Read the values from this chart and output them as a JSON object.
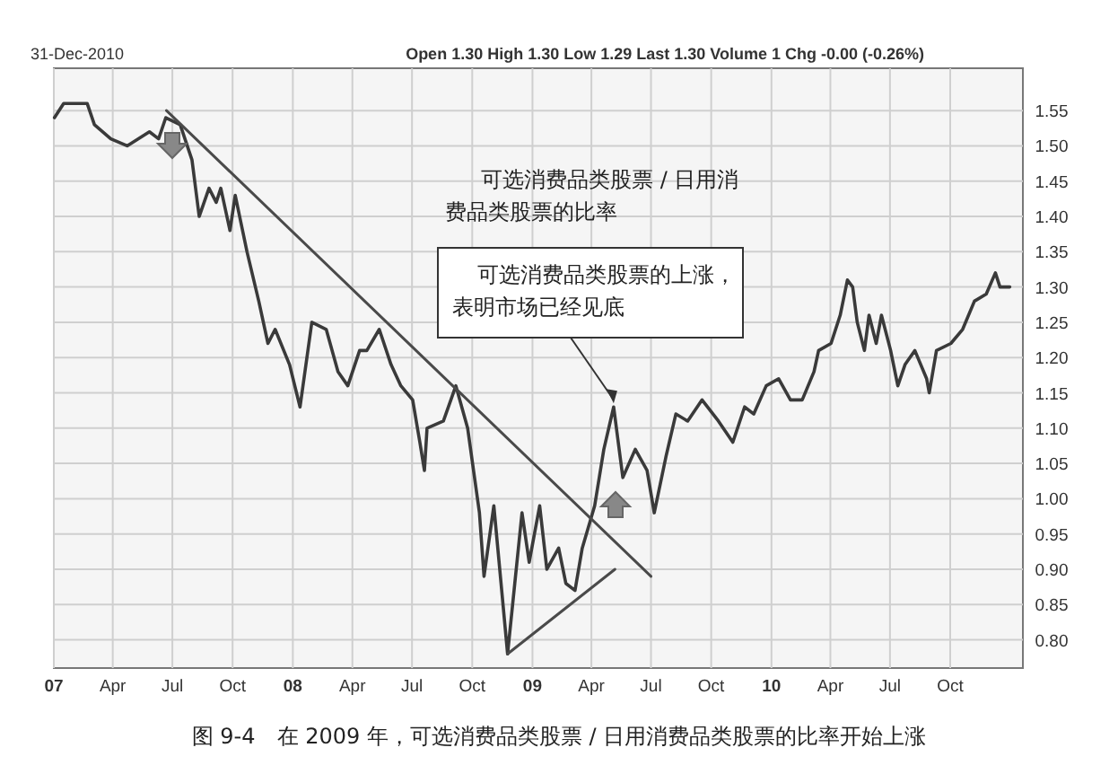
{
  "chart_data": {
    "type": "line",
    "subtitle": "31-Dec-2010",
    "annotations": [
      "Open 1.30 High 1.30 Low 1.29 Last 1.30 Volume 1 Chg -0.00 (-0.26%)",
      "可选消费品类股票 / 日用消费品类股票的比率",
      {
        "text": "可选消费品类股票的上涨，表明市场已经见底",
        "x": "2009-05-05",
        "y": 1.13
      },
      "图 9-4　在 2009 年，可选消费品类股票 / 日用消费品类股票的比率开始上涨"
    ],
    "series": [
      {
        "color": "#3a3a3a",
        "x": [
          "2007-01-02",
          "2007-01-16",
          "2007-02-03",
          "2007-02-21",
          "2007-03-04",
          "2007-03-29",
          "2007-04-23",
          "2007-05-27",
          "2007-06-10",
          "2007-06-21",
          "2007-07-13",
          "2007-07-31",
          "2007-08-11",
          "2007-08-26",
          "2007-09-06",
          "2007-09-13",
          "2007-09-27",
          "2007-10-05",
          "2007-10-23",
          "2007-11-10",
          "2007-11-24",
          "2007-12-05",
          "2007-12-27",
          "2008-01-12",
          "2008-01-30",
          "2008-02-21",
          "2008-03-10",
          "2008-03-25",
          "2008-04-12",
          "2008-04-23",
          "2008-05-12",
          "2008-05-30",
          "2008-06-14",
          "2008-07-02",
          "2008-07-13",
          "2008-07-20",
          "2008-07-24",
          "2008-08-18",
          "2008-09-06",
          "2008-09-24",
          "2008-10-12",
          "2008-10-19",
          "2008-11-03",
          "2008-11-17",
          "2008-11-24",
          "2008-12-05",
          "2008-12-16",
          "2008-12-27",
          "2009-01-12",
          "2009-01-23",
          "2009-02-10",
          "2009-02-21",
          "2009-03-07",
          "2009-03-18",
          "2009-04-06",
          "2009-04-20",
          "2009-05-05",
          "2009-05-19",
          "2009-06-07",
          "2009-06-25",
          "2009-07-06",
          "2009-07-24",
          "2009-08-08",
          "2009-08-26",
          "2009-09-17",
          "2009-10-12",
          "2009-11-03",
          "2009-11-21",
          "2009-12-05",
          "2009-12-24",
          "2010-01-12",
          "2010-01-30",
          "2010-02-17",
          "2010-03-07",
          "2010-03-14",
          "2010-04-02",
          "2010-04-16",
          "2010-04-27",
          "2010-05-05",
          "2010-05-12",
          "2010-05-23",
          "2010-05-30",
          "2010-06-10",
          "2010-06-18",
          "2010-07-02",
          "2010-07-13",
          "2010-07-24",
          "2010-08-08",
          "2010-08-26",
          "2010-08-30",
          "2010-09-10",
          "2010-10-02",
          "2010-10-20",
          "2010-11-07",
          "2010-11-25",
          "2010-12-09",
          "2010-12-16",
          "2010-12-27",
          "2010-12-31"
        ],
        "values": [
          1.54,
          1.56,
          1.56,
          1.56,
          1.53,
          1.51,
          1.5,
          1.52,
          1.51,
          1.54,
          1.53,
          1.48,
          1.4,
          1.44,
          1.42,
          1.44,
          1.38,
          1.43,
          1.35,
          1.28,
          1.22,
          1.24,
          1.19,
          1.13,
          1.25,
          1.24,
          1.18,
          1.16,
          1.21,
          1.21,
          1.24,
          1.19,
          1.16,
          1.14,
          1.08,
          1.04,
          1.1,
          1.11,
          1.16,
          1.1,
          0.98,
          0.89,
          0.99,
          0.85,
          0.78,
          0.88,
          0.98,
          0.91,
          0.99,
          0.9,
          0.93,
          0.88,
          0.87,
          0.93,
          0.99,
          1.07,
          1.13,
          1.03,
          1.07,
          1.04,
          0.98,
          1.06,
          1.12,
          1.11,
          1.14,
          1.11,
          1.08,
          1.13,
          1.12,
          1.16,
          1.17,
          1.14,
          1.14,
          1.18,
          1.21,
          1.22,
          1.26,
          1.31,
          1.3,
          1.25,
          1.21,
          1.26,
          1.22,
          1.26,
          1.21,
          1.16,
          1.19,
          1.21,
          1.17,
          1.15,
          1.21,
          1.22,
          1.24,
          1.28,
          1.29,
          1.32,
          1.3,
          1.3,
          1.3
        ]
      },
      {
        "color": "#4a4a4a",
        "x": [
          "2007-06-22",
          "2009-07-01"
        ],
        "values": [
          1.55,
          0.89
        ]
      },
      {
        "color": "#4a4a4a",
        "x": [
          "2008-11-24",
          "2009-05-07"
        ],
        "values": [
          0.78,
          0.9
        ]
      }
    ],
    "xlim": [
      "2007-01-01",
      "2011-01-20"
    ],
    "ylim": [
      0.76,
      1.61
    ],
    "xticks": [
      {
        "value": "2007-01-01",
        "label": "07"
      },
      {
        "value": "2007-04-01",
        "label": "Apr"
      },
      {
        "value": "2007-07-01",
        "label": "Jul"
      },
      {
        "value": "2007-10-01",
        "label": "Oct"
      },
      {
        "value": "2008-01-01",
        "label": "08"
      },
      {
        "value": "2008-04-01",
        "label": "Apr"
      },
      {
        "value": "2008-07-01",
        "label": "Jul"
      },
      {
        "value": "2008-10-01",
        "label": "Oct"
      },
      {
        "value": "2009-01-01",
        "label": "09"
      },
      {
        "value": "2009-04-01",
        "label": "Apr"
      },
      {
        "value": "2009-07-01",
        "label": "Jul"
      },
      {
        "value": "2009-10-01",
        "label": "Oct"
      },
      {
        "value": "2010-01-01",
        "label": "10"
      },
      {
        "value": "2010-04-01",
        "label": "Apr"
      },
      {
        "value": "2010-07-01",
        "label": "Jul"
      },
      {
        "value": "2010-10-01",
        "label": "Oct"
      }
    ],
    "yticks": [
      {
        "value": 0.8,
        "label": "0.80"
      },
      {
        "value": 0.85,
        "label": "0.85"
      },
      {
        "value": 0.9,
        "label": "0.90"
      },
      {
        "value": 0.95,
        "label": "0.95"
      },
      {
        "value": 1.0,
        "label": "1.00"
      },
      {
        "value": 1.05,
        "label": "1.05"
      },
      {
        "value": 1.1,
        "label": "1.10"
      },
      {
        "value": 1.15,
        "label": "1.15"
      },
      {
        "value": 1.2,
        "label": "1.20"
      },
      {
        "value": 1.25,
        "label": "1.25"
      },
      {
        "value": 1.3,
        "label": "1.30"
      },
      {
        "value": 1.35,
        "label": "1.35"
      },
      {
        "value": 1.4,
        "label": "1.40"
      },
      {
        "value": 1.45,
        "label": "1.45"
      },
      {
        "value": 1.5,
        "label": "1.50"
      },
      {
        "value": 1.55,
        "label": "1.55"
      }
    ],
    "grid": true,
    "line_style": "solid"
  }
}
